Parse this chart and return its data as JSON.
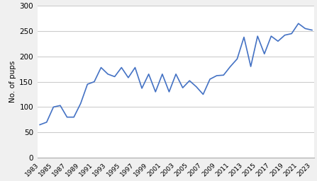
{
  "years": [
    1983,
    1984,
    1985,
    1986,
    1987,
    1988,
    1989,
    1990,
    1991,
    1992,
    1993,
    1994,
    1995,
    1996,
    1997,
    1998,
    1999,
    2000,
    2001,
    2002,
    2003,
    2004,
    2005,
    2006,
    2007,
    2008,
    2009,
    2010,
    2011,
    2012,
    2013,
    2014,
    2015,
    2016,
    2017,
    2018,
    2019,
    2020,
    2021,
    2022,
    2023
  ],
  "values": [
    65,
    70,
    100,
    103,
    80,
    80,
    107,
    145,
    150,
    178,
    165,
    160,
    178,
    158,
    178,
    137,
    165,
    130,
    165,
    130,
    165,
    138,
    152,
    140,
    125,
    155,
    162,
    163,
    180,
    195,
    238,
    180,
    240,
    205,
    240,
    230,
    242,
    245,
    265,
    255,
    252
  ],
  "line_color": "#4472C4",
  "line_width": 1.2,
  "ylabel": "No. of pups",
  "ylim": [
    0,
    300
  ],
  "yticks": [
    0,
    50,
    100,
    150,
    200,
    250,
    300
  ],
  "grid_color": "#cccccc",
  "background_color": "#ffffff",
  "figure_facecolor": "#f0f0f0",
  "xtick_labels": [
    "1983",
    "1985",
    "1987",
    "1989",
    "1991",
    "1993",
    "1995",
    "1997",
    "1999",
    "2001",
    "2003",
    "2005",
    "2007",
    "2009",
    "2011",
    "2013",
    "2015",
    "2017",
    "2019",
    "2021",
    "2023"
  ],
  "xtick_positions": [
    1983,
    1985,
    1987,
    1989,
    1991,
    1993,
    1995,
    1997,
    1999,
    2001,
    2003,
    2005,
    2007,
    2009,
    2011,
    2013,
    2015,
    2017,
    2019,
    2021,
    2023
  ]
}
